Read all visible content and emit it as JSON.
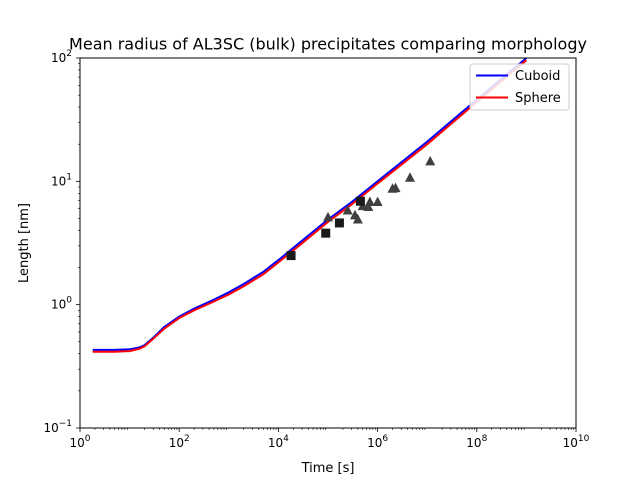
{
  "chart_data": {
    "type": "line",
    "title": "Mean radius of AL3SC (bulk) precipitates comparing morphology",
    "xlabel": "Time [s]",
    "ylabel": "Length [nm]",
    "xscale": "log",
    "yscale": "log",
    "xlim": [
      1,
      10000000000
    ],
    "ylim": [
      0.1,
      100
    ],
    "grid": false,
    "legend_position": "top-right",
    "x_ticks": [
      {
        "value": 1,
        "base": "10",
        "exp": "0"
      },
      {
        "value": 100,
        "base": "10",
        "exp": "2"
      },
      {
        "value": 10000,
        "base": "10",
        "exp": "4"
      },
      {
        "value": 1000000,
        "base": "10",
        "exp": "6"
      },
      {
        "value": 100000000,
        "base": "10",
        "exp": "8"
      },
      {
        "value": 10000000000,
        "base": "10",
        "exp": "10"
      }
    ],
    "y_ticks": [
      {
        "value": 0.1,
        "base": "10",
        "exp": "−1"
      },
      {
        "value": 1,
        "base": "10",
        "exp": "0"
      },
      {
        "value": 10,
        "base": "10",
        "exp": "1"
      },
      {
        "value": 100,
        "base": "10",
        "exp": "2"
      }
    ],
    "series": [
      {
        "name": "Cuboid",
        "color": "#0000ff",
        "x": [
          1.8,
          5,
          10,
          16,
          20,
          30,
          50,
          100,
          200,
          500,
          1000,
          2000,
          5000,
          10000,
          30000,
          100000,
          300000,
          1000000,
          10000000,
          100000000,
          1000000000
        ],
        "y": [
          0.43,
          0.43,
          0.435,
          0.45,
          0.47,
          0.54,
          0.66,
          0.8,
          0.93,
          1.1,
          1.26,
          1.47,
          1.85,
          2.3,
          3.3,
          4.9,
          6.8,
          10,
          21,
          46,
          100
        ]
      },
      {
        "name": "Sphere",
        "color": "#ff0000",
        "x": [
          1.8,
          5,
          10,
          16,
          20,
          30,
          50,
          100,
          200,
          500,
          1000,
          2000,
          5000,
          10000,
          30000,
          100000,
          300000,
          1000000,
          10000000,
          100000000,
          1000000000
        ],
        "y": [
          0.415,
          0.415,
          0.42,
          0.44,
          0.46,
          0.53,
          0.64,
          0.78,
          0.9,
          1.06,
          1.21,
          1.41,
          1.77,
          2.2,
          3.15,
          4.7,
          6.5,
          9.6,
          20,
          44,
          96
        ]
      }
    ],
    "markers_triangle": {
      "color": "#404040",
      "x": [
        100000,
        250000,
        350000,
        400000,
        500000,
        650000,
        700000,
        1000000,
        2000000,
        2300000,
        4500000,
        11500000
      ],
      "y": [
        5.1,
        5.8,
        5.3,
        4.9,
        6.3,
        6.2,
        6.8,
        6.8,
        8.7,
        8.8,
        10.7,
        14.5
      ]
    },
    "markers_square": {
      "color": "#1a1a1a",
      "x": [
        18000,
        90000,
        170000,
        450000
      ],
      "y": [
        2.5,
        3.8,
        4.6,
        6.9
      ]
    }
  }
}
